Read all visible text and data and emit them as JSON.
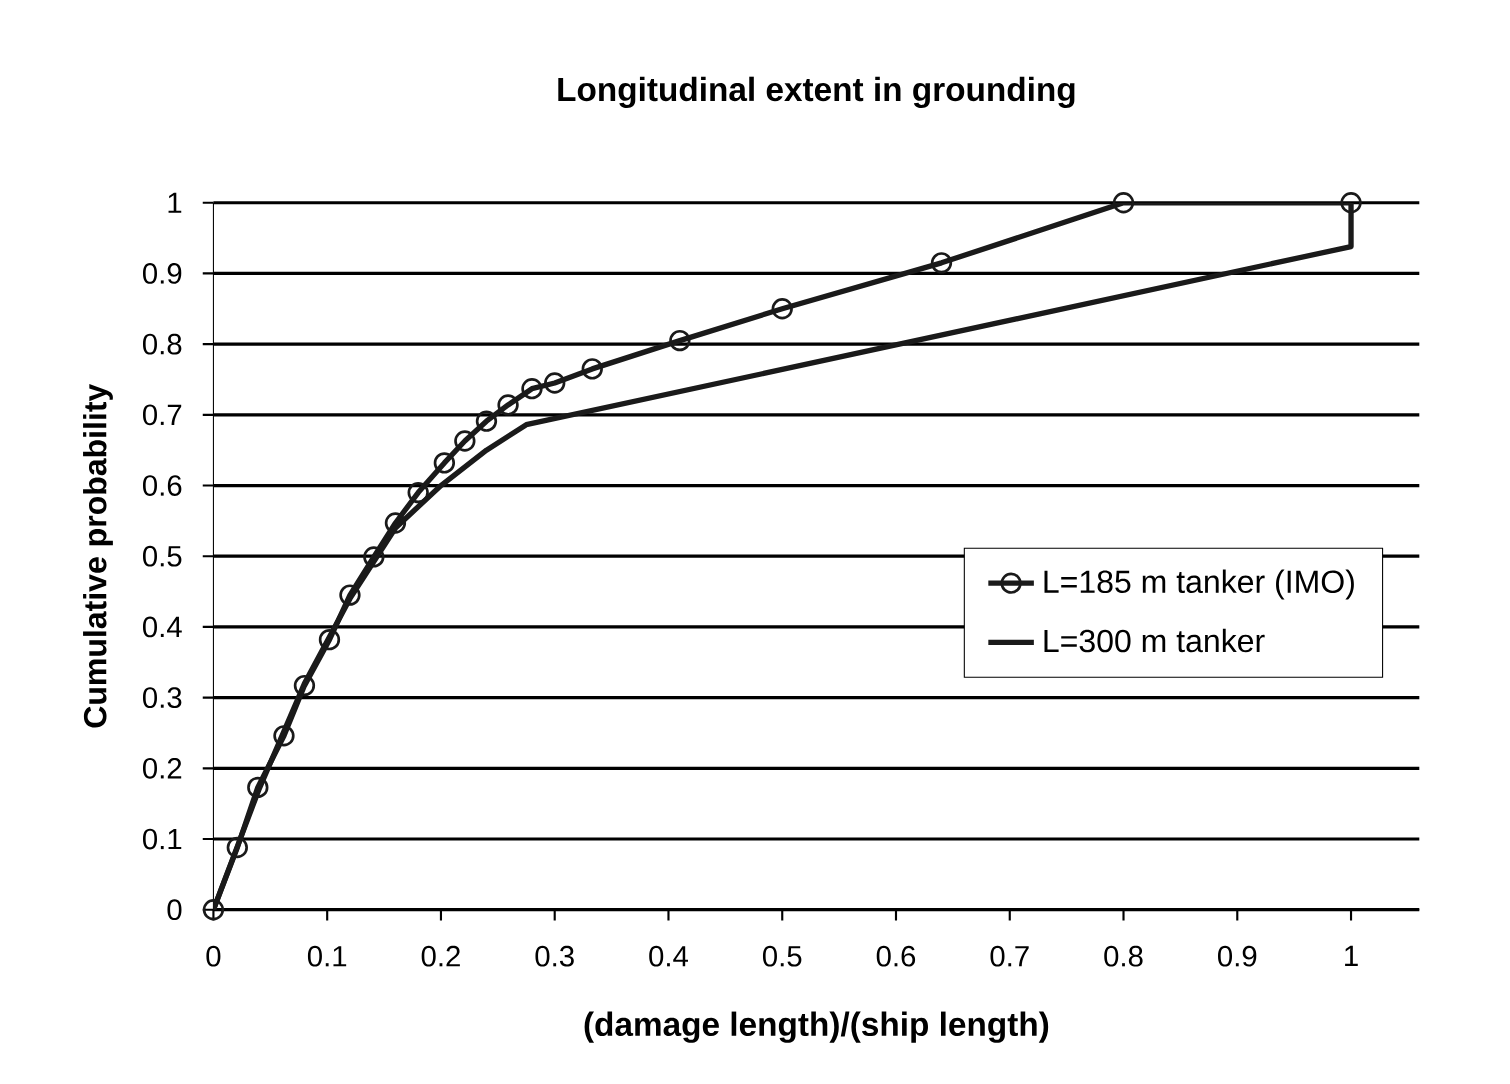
{
  "chart_data": {
    "type": "line",
    "title": "Longitudinal extent in  grounding",
    "xlabel": "(damage length)/(ship length)",
    "ylabel": "Cumulative probability",
    "xlim": [
      0,
      1.06
    ],
    "xticks": [
      0,
      0.1,
      0.2,
      0.3,
      0.4,
      0.5,
      0.6,
      0.7,
      0.8,
      0.9,
      1
    ],
    "ylim": [
      0,
      1
    ],
    "yticks": [
      0,
      0.1,
      0.2,
      0.3,
      0.4,
      0.5,
      0.6,
      0.7,
      0.8,
      0.9,
      1
    ],
    "grid": "y",
    "legend": "right",
    "series": [
      {
        "name": "L=185 m  tanker (IMO)",
        "color": "#1a1a1a",
        "marker": "circle",
        "x": [
          0,
          0.021,
          0.039,
          0.062,
          0.08,
          0.102,
          0.12,
          0.141,
          0.16,
          0.18,
          0.203,
          0.221,
          0.24,
          0.259,
          0.28,
          0.3,
          0.333,
          0.41,
          0.5,
          0.64,
          0.8,
          1
        ],
        "values": [
          0,
          0.088,
          0.173,
          0.246,
          0.317,
          0.382,
          0.445,
          0.499,
          0.547,
          0.59,
          0.632,
          0.663,
          0.691,
          0.714,
          0.737,
          0.745,
          0.765,
          0.805,
          0.85,
          0.915,
          1,
          1
        ]
      },
      {
        "name": "L=300 m  tanker",
        "color": "#1a1a1a",
        "marker": "none",
        "x": [
          0,
          0.04,
          0.08,
          0.12,
          0.16,
          0.2,
          0.24,
          0.275,
          1,
          1
        ],
        "values": [
          0,
          0.17,
          0.32,
          0.44,
          0.54,
          0.6,
          0.65,
          0.686,
          0.938,
          1
        ]
      }
    ]
  }
}
